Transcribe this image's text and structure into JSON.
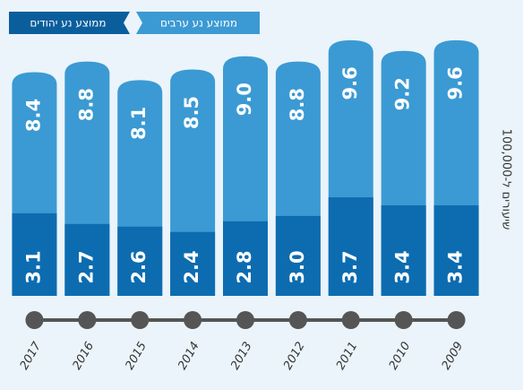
{
  "chart_data": {
    "type": "bar",
    "y_label": "שיעורים ל-100,000",
    "categories": [
      "2017",
      "2016",
      "2015",
      "2014",
      "2013",
      "2012",
      "2011",
      "2010",
      "2009"
    ],
    "series": [
      {
        "name": "ממוצע נע ערבים",
        "color": "#3b9ad3",
        "values": [
          8.4,
          8.8,
          8.1,
          8.5,
          9.0,
          8.8,
          9.6,
          9.2,
          9.6
        ],
        "value_labels": [
          "8.4",
          "8.8",
          "8.1",
          "8.5",
          "9.0",
          "8.8",
          "9.6",
          "9.2",
          "9.6"
        ]
      },
      {
        "name": "ממוצע נע יהודים",
        "color": "#0d6cb0",
        "values": [
          3.1,
          2.7,
          2.6,
          2.4,
          2.8,
          3.0,
          3.7,
          3.4,
          3.4
        ],
        "value_labels": [
          "3.1",
          "2.7",
          "2.6",
          "2.4",
          "2.8",
          "3.0",
          "3.7",
          "3.4",
          "3.4"
        ]
      }
    ],
    "ylim": [
      0,
      10
    ]
  }
}
